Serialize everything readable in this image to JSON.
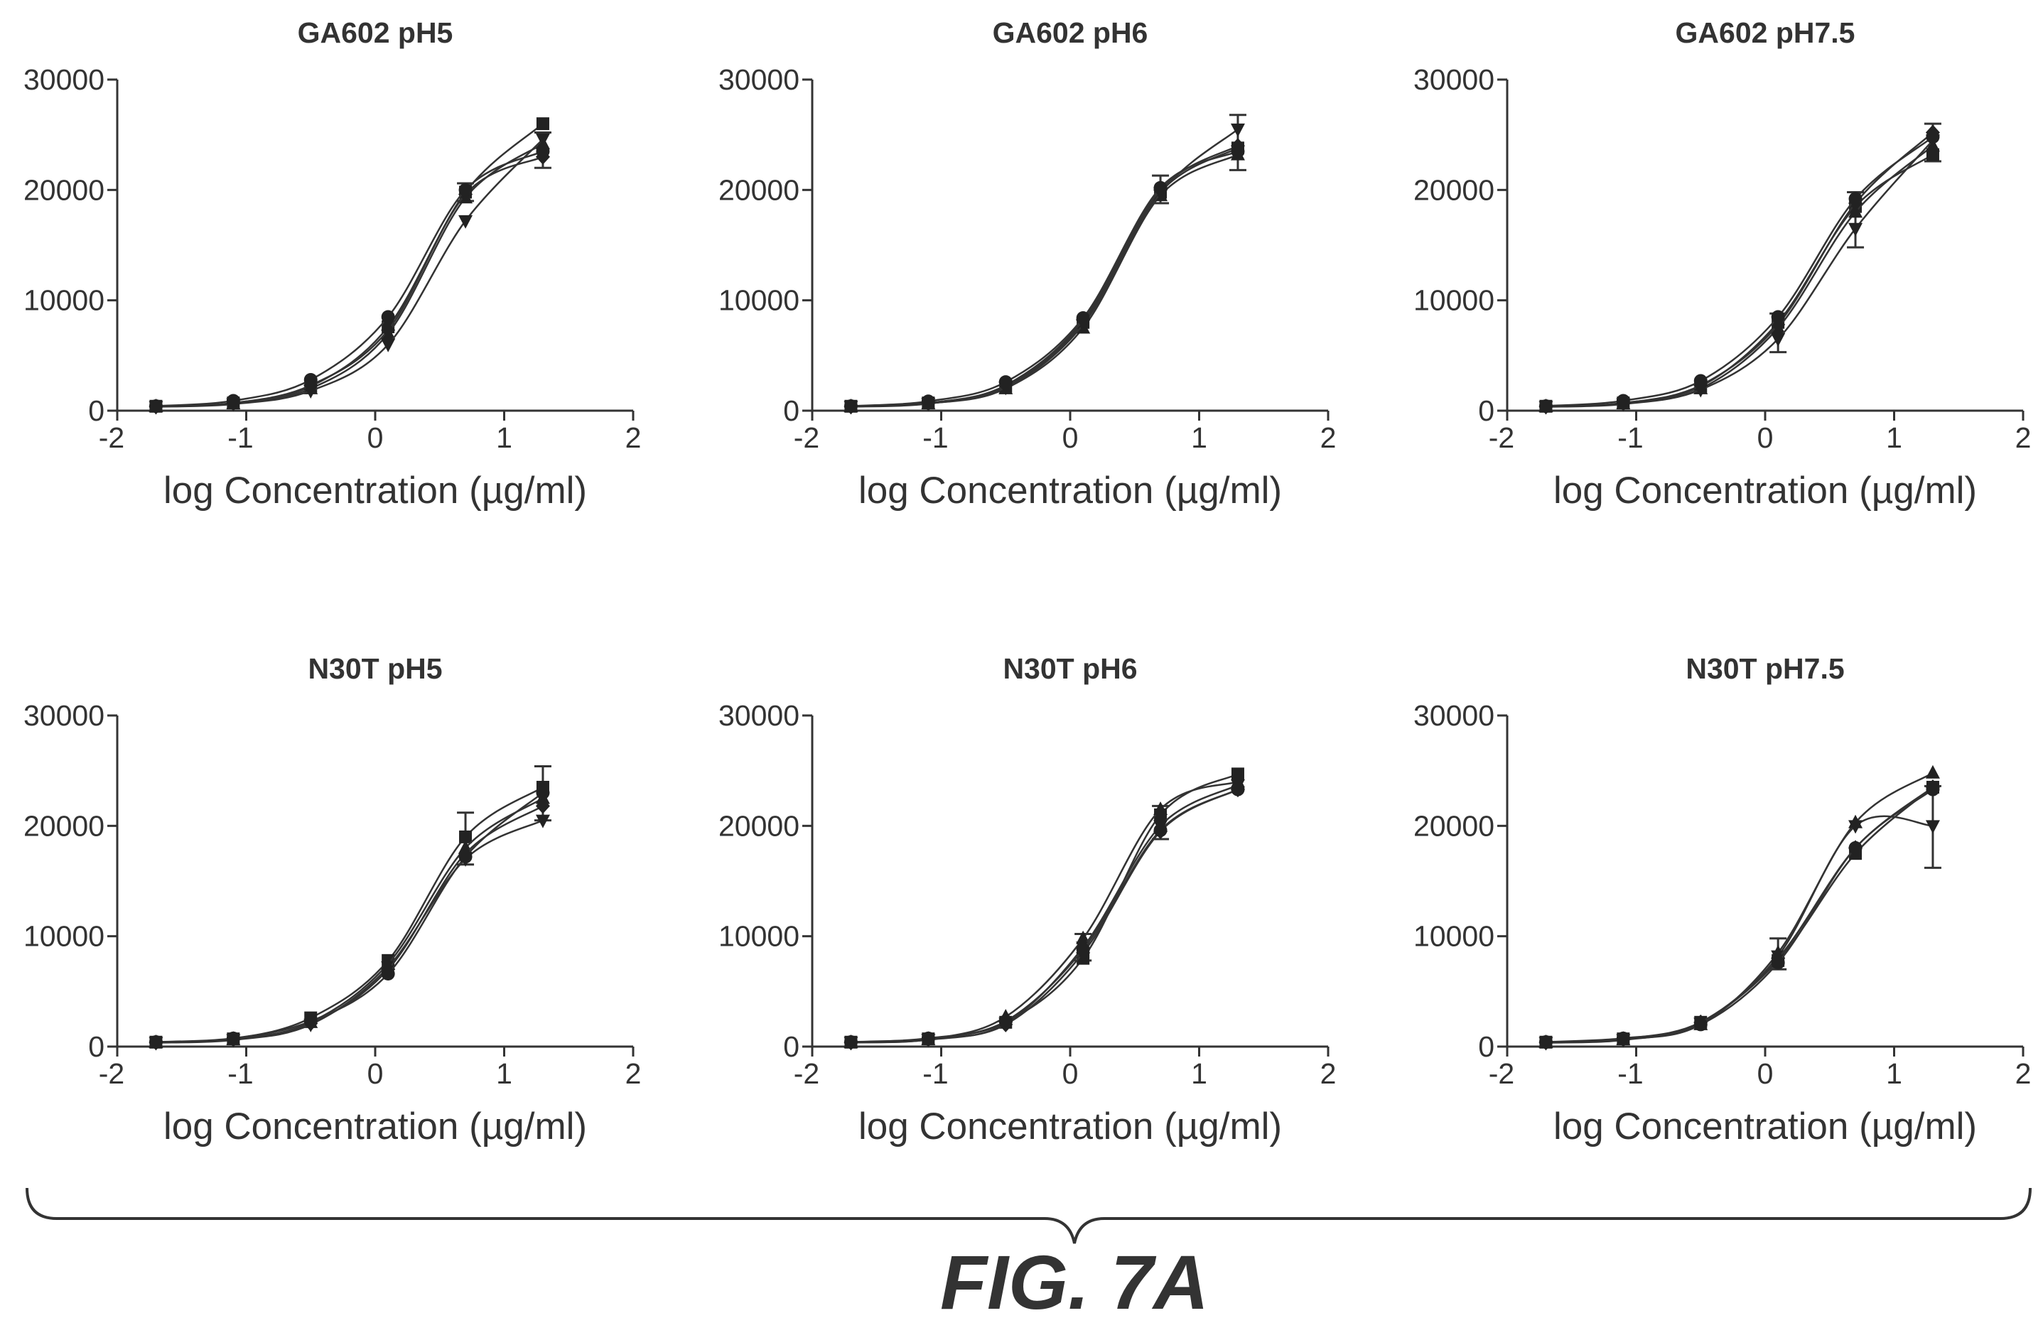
{
  "figure_label": "FIG. 7A",
  "chart_data": [
    {
      "type": "line",
      "title": "GA602 pH5",
      "xlabel": "log Concentration (µg/ml)",
      "ylabel": "",
      "xlim": [
        -2,
        2
      ],
      "ylim": [
        0,
        30000
      ],
      "x_ticks": [
        -2,
        -1,
        0,
        1,
        2
      ],
      "y_ticks": [
        0,
        10000,
        20000,
        30000
      ],
      "grid": false,
      "series": [
        {
          "marker": "square",
          "x": [
            -1.7,
            -1.1,
            -0.5,
            0.1,
            0.7,
            1.3
          ],
          "y": [
            400,
            700,
            2200,
            7600,
            19800,
            26000
          ]
        },
        {
          "marker": "triangle-up",
          "x": [
            -1.7,
            -1.1,
            -0.5,
            0.1,
            0.7,
            1.3
          ],
          "y": [
            380,
            650,
            2000,
            7000,
            19300,
            24200
          ]
        },
        {
          "marker": "triangle-down",
          "x": [
            -1.7,
            -1.1,
            -0.5,
            0.1,
            0.7,
            1.3
          ],
          "y": [
            350,
            600,
            1800,
            6000,
            17200,
            24600
          ]
        },
        {
          "marker": "diamond",
          "x": [
            -1.7,
            -1.1,
            -0.5,
            0.1,
            0.7,
            1.3
          ],
          "y": [
            370,
            680,
            2300,
            7300,
            19600,
            23000
          ]
        },
        {
          "marker": "circle",
          "x": [
            -1.7,
            -1.1,
            -0.5,
            0.1,
            0.7,
            1.3
          ],
          "y": [
            420,
            900,
            2800,
            8500,
            20000,
            23500
          ]
        }
      ],
      "error_bars": [
        {
          "x": 1.3,
          "low": 22000,
          "high": 25200
        },
        {
          "x": 0.7,
          "low": 19000,
          "high": 20600
        }
      ]
    },
    {
      "type": "line",
      "title": "GA602 pH6",
      "xlabel": "log Concentration (µg/ml)",
      "ylabel": "",
      "xlim": [
        -2,
        2
      ],
      "ylim": [
        0,
        30000
      ],
      "x_ticks": [
        -2,
        -1,
        0,
        1,
        2
      ],
      "y_ticks": [
        0,
        10000,
        20000,
        30000
      ],
      "grid": false,
      "series": [
        {
          "marker": "square",
          "x": [
            -1.7,
            -1.1,
            -0.5,
            0.1,
            0.7,
            1.3
          ],
          "y": [
            400,
            700,
            2200,
            8000,
            19800,
            23800
          ]
        },
        {
          "marker": "triangle-up",
          "x": [
            -1.7,
            -1.1,
            -0.5,
            0.1,
            0.7,
            1.3
          ],
          "y": [
            380,
            650,
            2000,
            7500,
            19500,
            23200
          ]
        },
        {
          "marker": "triangle-down",
          "x": [
            -1.7,
            -1.1,
            -0.5,
            0.1,
            0.7,
            1.3
          ],
          "y": [
            360,
            640,
            2100,
            7800,
            19700,
            25500
          ]
        },
        {
          "marker": "diamond",
          "x": [
            -1.7,
            -1.1,
            -0.5,
            0.1,
            0.7,
            1.3
          ],
          "y": [
            370,
            680,
            2300,
            8200,
            20000,
            24000
          ]
        },
        {
          "marker": "circle",
          "x": [
            -1.7,
            -1.1,
            -0.5,
            0.1,
            0.7,
            1.3
          ],
          "y": [
            420,
            850,
            2600,
            8400,
            20200,
            23500
          ]
        }
      ],
      "error_bars": [
        {
          "x": 1.3,
          "low": 21800,
          "high": 26800
        },
        {
          "x": 0.7,
          "low": 18800,
          "high": 21300
        }
      ]
    },
    {
      "type": "line",
      "title": "GA602 pH7.5",
      "xlabel": "log Concentration (µg/ml)",
      "ylabel": "",
      "xlim": [
        -2,
        2
      ],
      "ylim": [
        0,
        30000
      ],
      "x_ticks": [
        -2,
        -1,
        0,
        1,
        2
      ],
      "y_ticks": [
        0,
        10000,
        20000,
        30000
      ],
      "grid": false,
      "series": [
        {
          "marker": "square",
          "x": [
            -1.7,
            -1.1,
            -0.5,
            0.1,
            0.7,
            1.3
          ],
          "y": [
            400,
            700,
            2200,
            8000,
            18500,
            23200
          ]
        },
        {
          "marker": "triangle-up",
          "x": [
            -1.7,
            -1.1,
            -0.5,
            0.1,
            0.7,
            1.3
          ],
          "y": [
            380,
            650,
            2000,
            7500,
            18000,
            24000
          ]
        },
        {
          "marker": "triangle-down",
          "x": [
            -1.7,
            -1.1,
            -0.5,
            0.1,
            0.7,
            1.3
          ],
          "y": [
            350,
            600,
            1900,
            6500,
            16500,
            24500
          ]
        },
        {
          "marker": "diamond",
          "x": [
            -1.7,
            -1.1,
            -0.5,
            0.1,
            0.7,
            1.3
          ],
          "y": [
            370,
            680,
            2300,
            7800,
            18800,
            25200
          ]
        },
        {
          "marker": "circle",
          "x": [
            -1.7,
            -1.1,
            -0.5,
            0.1,
            0.7,
            1.3
          ],
          "y": [
            420,
            900,
            2700,
            8500,
            19200,
            24800
          ]
        }
      ],
      "error_bars": [
        {
          "x": 0.7,
          "low": 14800,
          "high": 19800
        },
        {
          "x": 0.1,
          "low": 5300,
          "high": 8800
        },
        {
          "x": 1.3,
          "low": 22600,
          "high": 26000
        }
      ]
    },
    {
      "type": "line",
      "title": "N30T pH5",
      "xlabel": "log Concentration (µg/ml)",
      "ylabel": "",
      "xlim": [
        -2,
        2
      ],
      "ylim": [
        0,
        30000
      ],
      "x_ticks": [
        -2,
        -1,
        0,
        1,
        2
      ],
      "y_ticks": [
        0,
        10000,
        20000,
        30000
      ],
      "grid": false,
      "series": [
        {
          "marker": "square",
          "x": [
            -1.7,
            -1.1,
            -0.5,
            0.1,
            0.7,
            1.3
          ],
          "y": [
            400,
            700,
            2600,
            7800,
            19000,
            23500
          ]
        },
        {
          "marker": "triangle-up",
          "x": [
            -1.7,
            -1.1,
            -0.5,
            0.1,
            0.7,
            1.3
          ],
          "y": [
            380,
            650,
            2200,
            7500,
            18000,
            22500
          ]
        },
        {
          "marker": "triangle-down",
          "x": [
            -1.7,
            -1.1,
            -0.5,
            0.1,
            0.7,
            1.3
          ],
          "y": [
            350,
            600,
            2000,
            7200,
            17000,
            20500
          ]
        },
        {
          "marker": "diamond",
          "x": [
            -1.7,
            -1.1,
            -0.5,
            0.1,
            0.7,
            1.3
          ],
          "y": [
            370,
            680,
            2100,
            7000,
            17500,
            21800
          ]
        },
        {
          "marker": "circle",
          "x": [
            -1.7,
            -1.1,
            -0.5,
            0.1,
            0.7,
            1.3
          ],
          "y": [
            420,
            750,
            2300,
            6600,
            17200,
            23000
          ]
        }
      ],
      "error_bars": [
        {
          "x": 0.7,
          "low": 16500,
          "high": 21200
        },
        {
          "x": 1.3,
          "low": 20500,
          "high": 25400
        }
      ]
    },
    {
      "type": "line",
      "title": "N30T pH6",
      "xlabel": "log Concentration (µg/ml)",
      "ylabel": "",
      "xlim": [
        -2,
        2
      ],
      "ylim": [
        0,
        30000
      ],
      "x_ticks": [
        -2,
        -1,
        0,
        1,
        2
      ],
      "y_ticks": [
        0,
        10000,
        20000,
        30000
      ],
      "grid": false,
      "series": [
        {
          "marker": "square",
          "x": [
            -1.7,
            -1.1,
            -0.5,
            0.1,
            0.7,
            1.3
          ],
          "y": [
            400,
            700,
            2200,
            8000,
            21000,
            24700
          ]
        },
        {
          "marker": "triangle-up",
          "x": [
            -1.7,
            -1.1,
            -0.5,
            0.1,
            0.7,
            1.3
          ],
          "y": [
            380,
            650,
            2700,
            9800,
            21500,
            24000
          ]
        },
        {
          "marker": "triangle-down",
          "x": [
            -1.7,
            -1.1,
            -0.5,
            0.1,
            0.7,
            1.3
          ],
          "y": [
            360,
            620,
            2100,
            9000,
            20000,
            23700
          ]
        },
        {
          "marker": "diamond",
          "x": [
            -1.7,
            -1.1,
            -0.5,
            0.1,
            0.7,
            1.3
          ],
          "y": [
            370,
            680,
            2000,
            8500,
            19500,
            23300
          ]
        },
        {
          "marker": "circle",
          "x": [
            -1.7,
            -1.1,
            -0.5,
            0.1,
            0.7,
            1.3
          ],
          "y": [
            420,
            750,
            2300,
            8800,
            19600,
            23300
          ]
        }
      ],
      "error_bars": [
        {
          "x": 0.7,
          "low": 18800,
          "high": 21800
        },
        {
          "x": 0.1,
          "low": 7800,
          "high": 10200
        }
      ]
    },
    {
      "type": "line",
      "title": "N30T pH7.5",
      "xlabel": "log Concentration (µg/ml)",
      "ylabel": "",
      "xlim": [
        -2,
        2
      ],
      "ylim": [
        0,
        30000
      ],
      "x_ticks": [
        -2,
        -1,
        0,
        1,
        2
      ],
      "y_ticks": [
        0,
        10000,
        20000,
        30000
      ],
      "grid": false,
      "series": [
        {
          "marker": "square",
          "x": [
            -1.7,
            -1.1,
            -0.5,
            0.1,
            0.7,
            1.3
          ],
          "y": [
            400,
            700,
            2200,
            7800,
            17500,
            23500
          ]
        },
        {
          "marker": "triangle-up",
          "x": [
            -1.7,
            -1.1,
            -0.5,
            0.1,
            0.7,
            1.3
          ],
          "y": [
            380,
            650,
            2000,
            8500,
            20300,
            24800
          ]
        },
        {
          "marker": "triangle-down",
          "x": [
            -1.7,
            -1.1,
            -0.5,
            0.1,
            0.7,
            1.3
          ],
          "y": [
            350,
            600,
            2100,
            8200,
            20000,
            20000
          ]
        },
        {
          "marker": "diamond",
          "x": [
            -1.7,
            -1.1,
            -0.5,
            0.1,
            0.7,
            1.3
          ],
          "y": [
            370,
            680,
            2200,
            8000,
            18000,
            23500
          ]
        },
        {
          "marker": "circle",
          "x": [
            -1.7,
            -1.1,
            -0.5,
            0.1,
            0.7,
            1.3
          ],
          "y": [
            420,
            750,
            2000,
            7600,
            18000,
            23300
          ]
        }
      ],
      "error_bars": [
        {
          "x": 1.3,
          "low": 16200,
          "high": 23600
        },
        {
          "x": 0.1,
          "low": 7000,
          "high": 9800
        }
      ]
    }
  ]
}
